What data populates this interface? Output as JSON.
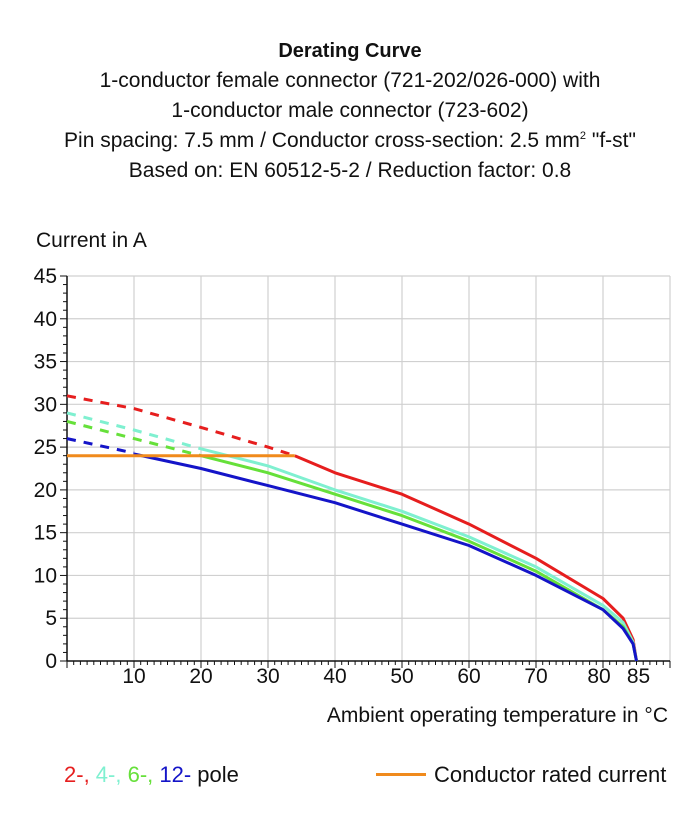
{
  "colors": {
    "pole_2": "#e61e1e",
    "pole_4": "#7ff0d0",
    "pole_6": "#66e03a",
    "pole_12": "#1414c8",
    "rated": "#f08a1c",
    "grid": "#d0d0d0"
  },
  "legend": {
    "poles_2": "2-",
    "poles_4": "4-",
    "poles_6": "6-",
    "poles_12": "12-",
    "sep": ", ",
    "pole_word": " pole",
    "rated": "Conductor rated current"
  },
  "chart_data": {
    "type": "line",
    "title": "Derating Curve",
    "subtitle_lines": [
      "1-conductor female connector (721-202/026-000) with",
      "1-conductor male connector (723-602)",
      "Pin spacing: 7.5 mm / Conductor cross-section: 2.5 mm",
      "Based on: EN 60512-5-2 / Reduction factor: 0.8"
    ],
    "subtitle_sup": "2",
    "subtitle_tail": " \"f-st\"",
    "ylabel": "Current in A",
    "xlabel": "Ambient operating temperature in °C",
    "xlim": [
      0,
      90
    ],
    "ylim": [
      0,
      45
    ],
    "xticks": [
      10,
      20,
      30,
      40,
      50,
      60,
      70,
      80,
      85
    ],
    "yticks": [
      0,
      5,
      10,
      15,
      20,
      25,
      30,
      35,
      40,
      45
    ],
    "x_gridlines": [
      10,
      20,
      30,
      40,
      50,
      60,
      70,
      80
    ],
    "series": [
      {
        "name": "2-pole",
        "color_key": "pole_2",
        "dashed": {
          "x": [
            0,
            10,
            20,
            30,
            34
          ],
          "y": [
            31,
            29.5,
            27.3,
            25,
            24
          ]
        },
        "solid": {
          "x": [
            34,
            40,
            50,
            60,
            70,
            80,
            83,
            84.5,
            85
          ],
          "y": [
            24,
            22,
            19.5,
            16,
            12,
            7.3,
            5,
            2.5,
            0
          ]
        }
      },
      {
        "name": "4-pole",
        "color_key": "pole_4",
        "dashed": {
          "x": [
            0,
            10,
            20
          ],
          "y": [
            29,
            27,
            24.8
          ]
        },
        "solid": {
          "x": [
            20,
            30,
            40,
            50,
            60,
            70,
            80,
            83,
            84.5,
            85
          ],
          "y": [
            24.8,
            22.8,
            20,
            17.5,
            14.5,
            11,
            6.5,
            4.5,
            2.2,
            0
          ]
        }
      },
      {
        "name": "6-pole",
        "color_key": "pole_6",
        "dashed": {
          "x": [
            0,
            10,
            20
          ],
          "y": [
            28,
            26,
            24
          ]
        },
        "solid": {
          "x": [
            20,
            30,
            40,
            50,
            60,
            70,
            80,
            83,
            84.5,
            85
          ],
          "y": [
            24,
            22,
            19.5,
            17,
            14,
            10.5,
            6,
            4,
            2,
            0
          ]
        }
      },
      {
        "name": "12-pole",
        "color_key": "pole_12",
        "dashed": {
          "x": [
            0,
            10
          ],
          "y": [
            26,
            24.3
          ]
        },
        "solid": {
          "x": [
            10,
            20,
            30,
            40,
            50,
            60,
            70,
            80,
            83,
            84.5,
            85
          ],
          "y": [
            24.2,
            22.5,
            20.5,
            18.5,
            16,
            13.5,
            10,
            6,
            3.8,
            2,
            0
          ]
        }
      },
      {
        "name": "Conductor rated current",
        "color_key": "rated",
        "solid": {
          "x": [
            0,
            34
          ],
          "y": [
            24,
            24
          ]
        }
      }
    ]
  }
}
